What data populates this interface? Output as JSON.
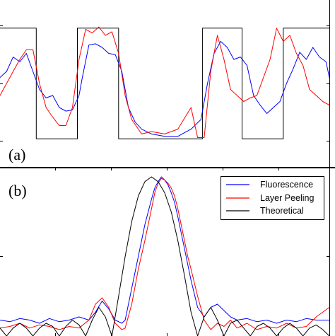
{
  "chart_data": [
    {
      "type": "line",
      "panel_label": "(a)",
      "xlim": [
        0,
        1
      ],
      "ylim": [
        0,
        1
      ],
      "grid": false,
      "series": [
        {
          "color": "#000000",
          "style": "square-wave",
          "x": [
            0.0,
            0.11,
            0.11,
            0.235,
            0.235,
            0.36,
            0.36,
            0.615,
            0.615,
            0.735,
            0.735,
            0.86,
            0.86,
            1.0
          ],
          "y": [
            0.96,
            0.96,
            0.04,
            0.04,
            0.96,
            0.96,
            0.04,
            0.04,
            0.96,
            0.96,
            0.04,
            0.04,
            0.96,
            0.96
          ]
        },
        {
          "color": "#0000ff",
          "x": [
            0.0,
            0.02,
            0.04,
            0.06,
            0.08,
            0.1,
            0.12,
            0.14,
            0.16,
            0.18,
            0.2,
            0.22,
            0.24,
            0.25,
            0.27,
            0.29,
            0.31,
            0.33,
            0.35,
            0.37,
            0.39,
            0.41,
            0.43,
            0.46,
            0.5,
            0.54,
            0.58,
            0.61,
            0.63,
            0.65,
            0.67,
            0.69,
            0.71,
            0.73,
            0.75,
            0.77,
            0.79,
            0.81,
            0.83,
            0.85,
            0.87,
            0.89,
            0.91,
            0.93,
            0.95,
            0.97,
            0.99,
            1.0
          ],
          "y": [
            0.55,
            0.6,
            0.72,
            0.68,
            0.75,
            0.6,
            0.45,
            0.38,
            0.4,
            0.3,
            0.27,
            0.28,
            0.4,
            0.55,
            0.82,
            0.83,
            0.8,
            0.75,
            0.74,
            0.6,
            0.3,
            0.18,
            0.12,
            0.08,
            0.06,
            0.06,
            0.12,
            0.2,
            0.5,
            0.75,
            0.85,
            0.8,
            0.7,
            0.72,
            0.65,
            0.4,
            0.32,
            0.25,
            0.3,
            0.35,
            0.5,
            0.62,
            0.76,
            0.7,
            0.8,
            0.72,
            0.68,
            0.55
          ]
        },
        {
          "color": "#ff0000",
          "x": [
            0.0,
            0.02,
            0.04,
            0.06,
            0.08,
            0.1,
            0.12,
            0.14,
            0.16,
            0.18,
            0.2,
            0.22,
            0.24,
            0.26,
            0.28,
            0.3,
            0.32,
            0.34,
            0.36,
            0.38,
            0.4,
            0.43,
            0.46,
            0.5,
            0.54,
            0.58,
            0.6,
            0.62,
            0.64,
            0.66,
            0.68,
            0.7,
            0.72,
            0.74,
            0.76,
            0.78,
            0.8,
            0.82,
            0.84,
            0.86,
            0.88,
            0.9,
            0.92,
            0.94,
            0.96,
            0.98,
            1.0
          ],
          "y": [
            0.4,
            0.5,
            0.6,
            0.7,
            0.78,
            0.78,
            0.5,
            0.3,
            0.22,
            0.15,
            0.15,
            0.3,
            0.7,
            0.95,
            0.92,
            0.97,
            0.9,
            0.93,
            0.75,
            0.4,
            0.2,
            0.08,
            0.1,
            0.08,
            0.12,
            0.3,
            0.05,
            0.05,
            0.6,
            0.9,
            0.7,
            0.45,
            0.4,
            0.35,
            0.38,
            0.4,
            0.55,
            0.7,
            0.96,
            0.85,
            0.9,
            0.75,
            0.65,
            0.45,
            0.4,
            0.35,
            0.32
          ]
        }
      ]
    },
    {
      "type": "line",
      "panel_label": "(b)",
      "xlim": [
        0,
        1
      ],
      "ylim": [
        0,
        1
      ],
      "grid": false,
      "legend_position": "top-right",
      "series": [
        {
          "name": "Fluorescence",
          "color": "#0000ff",
          "x": [
            0.0,
            0.03,
            0.06,
            0.09,
            0.12,
            0.15,
            0.18,
            0.21,
            0.24,
            0.27,
            0.29,
            0.31,
            0.33,
            0.35,
            0.37,
            0.38,
            0.4,
            0.42,
            0.44,
            0.46,
            0.47,
            0.48,
            0.49,
            0.5,
            0.51,
            0.52,
            0.53,
            0.54,
            0.56,
            0.58,
            0.6,
            0.62,
            0.64,
            0.66,
            0.68,
            0.7,
            0.72,
            0.75,
            0.78,
            0.81,
            0.84,
            0.87,
            0.9,
            0.93,
            0.96,
            1.0
          ],
          "y": [
            0.1,
            0.09,
            0.11,
            0.1,
            0.08,
            0.11,
            0.09,
            0.1,
            0.12,
            0.1,
            0.15,
            0.22,
            0.17,
            0.1,
            0.08,
            0.1,
            0.3,
            0.5,
            0.7,
            0.86,
            0.93,
            0.97,
            1.0,
            0.98,
            0.95,
            0.9,
            0.84,
            0.75,
            0.55,
            0.35,
            0.18,
            0.12,
            0.18,
            0.2,
            0.16,
            0.12,
            0.1,
            0.11,
            0.09,
            0.1,
            0.08,
            0.1,
            0.09,
            0.11,
            0.1,
            0.1
          ]
        },
        {
          "name": "Layer Peeling",
          "color": "#ff0000",
          "x": [
            0.0,
            0.03,
            0.06,
            0.09,
            0.12,
            0.15,
            0.18,
            0.21,
            0.24,
            0.27,
            0.29,
            0.31,
            0.33,
            0.35,
            0.37,
            0.38,
            0.4,
            0.42,
            0.44,
            0.46,
            0.47,
            0.48,
            0.49,
            0.5,
            0.51,
            0.52,
            0.53,
            0.54,
            0.55,
            0.56,
            0.57,
            0.58,
            0.6,
            0.62,
            0.64,
            0.66,
            0.68,
            0.7,
            0.72,
            0.75,
            0.78,
            0.81,
            0.84,
            0.87,
            0.9,
            0.93,
            0.96,
            1.0
          ],
          "y": [
            0.05,
            0.06,
            0.08,
            0.05,
            0.07,
            0.06,
            0.04,
            0.06,
            0.05,
            0.1,
            0.2,
            0.24,
            0.18,
            0.08,
            0.04,
            0.05,
            0.2,
            0.42,
            0.6,
            0.8,
            0.9,
            0.96,
            0.99,
            0.98,
            0.96,
            0.93,
            0.88,
            0.8,
            0.7,
            0.6,
            0.5,
            0.42,
            0.25,
            0.1,
            0.04,
            0.08,
            0.06,
            0.1,
            0.05,
            0.08,
            0.04,
            0.06,
            0.05,
            0.08,
            0.05,
            0.06,
            0.12,
            0.18
          ]
        },
        {
          "name": "Theoretical",
          "color": "#000000",
          "x": [
            0.0,
            0.02,
            0.04,
            0.06,
            0.08,
            0.1,
            0.12,
            0.14,
            0.16,
            0.18,
            0.2,
            0.22,
            0.24,
            0.26,
            0.28,
            0.3,
            0.32,
            0.34,
            0.36,
            0.38,
            0.4,
            0.42,
            0.44,
            0.46,
            0.48,
            0.5,
            0.52,
            0.54,
            0.56,
            0.58,
            0.6,
            0.62,
            0.64,
            0.66,
            0.68,
            0.7,
            0.72,
            0.74,
            0.76,
            0.78,
            0.8,
            0.82,
            0.84,
            0.86,
            0.88,
            0.9,
            0.92,
            0.94,
            0.96,
            0.98,
            1.0
          ],
          "y": [
            0.05,
            0.0,
            0.05,
            0.08,
            0.05,
            0.0,
            0.05,
            0.08,
            0.06,
            0.0,
            0.06,
            0.1,
            0.07,
            0.0,
            0.1,
            0.18,
            0.12,
            0.0,
            0.25,
            0.5,
            0.72,
            0.88,
            0.97,
            1.0,
            0.97,
            0.9,
            0.78,
            0.6,
            0.38,
            0.15,
            0.0,
            0.12,
            0.18,
            0.1,
            0.0,
            0.08,
            0.1,
            0.05,
            0.0,
            0.06,
            0.08,
            0.05,
            0.0,
            0.05,
            0.08,
            0.05,
            0.0,
            0.05,
            0.07,
            0.04,
            0.0
          ]
        }
      ]
    }
  ]
}
